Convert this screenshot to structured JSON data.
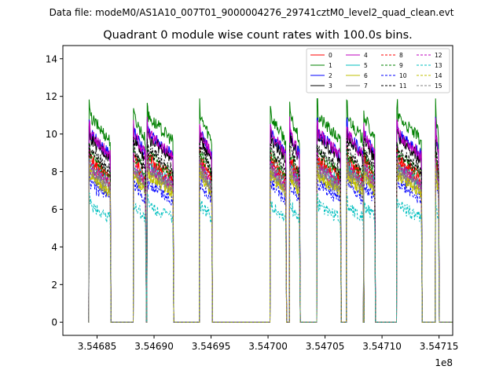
{
  "chart_data": {
    "type": "line",
    "suptitle": "Data file: modeM0/AS1A10_007T01_9000004276_29741cztM0_level2_quad_clean.evt",
    "title": "Quadrant 0 module wise count rates with 100.0s bins.",
    "xlabel": "",
    "ylabel": "",
    "x_offset_label": "1e8",
    "xlim": [
      3.54682,
      3.547162
    ],
    "ylim": [
      -0.7,
      14.7
    ],
    "x_ticks": [
      3.54685,
      3.5469,
      3.54695,
      3.547,
      3.54705,
      3.5471,
      3.54715
    ],
    "x_tick_labels": [
      "3.54685",
      "3.54690",
      "3.54695",
      "3.54700",
      "3.54705",
      "3.54710",
      "3.54715"
    ],
    "y_ticks": [
      0,
      2,
      4,
      6,
      8,
      10,
      12,
      14
    ],
    "y_tick_labels": [
      "0",
      "2",
      "4",
      "6",
      "8",
      "10",
      "12",
      "14"
    ],
    "grid": false,
    "legend_position": "top-right",
    "active_segments": [
      [
        3.546843,
        3.546862
      ],
      [
        3.546882,
        3.546893
      ],
      [
        3.546894,
        3.546917
      ],
      [
        3.54694,
        3.546951
      ],
      [
        3.547002,
        3.547016
      ],
      [
        3.547019,
        3.547028
      ],
      [
        3.547043,
        3.547064
      ],
      [
        3.547069,
        3.547084
      ],
      [
        3.547084,
        3.547094
      ],
      [
        3.547113,
        3.547135
      ],
      [
        3.547147,
        3.54715
      ]
    ],
    "gap_level": 0,
    "series": [
      {
        "name": "0",
        "color": "#ff0000",
        "dash": "solid",
        "level": 7.8
      },
      {
        "name": "1",
        "color": "#008000",
        "dash": "solid",
        "level": 9.8
      },
      {
        "name": "2",
        "color": "#0000ff",
        "dash": "solid",
        "level": 9.0
      },
      {
        "name": "3",
        "color": "#000000",
        "dash": "solid",
        "level": 8.8
      },
      {
        "name": "4",
        "color": "#bf00bf",
        "dash": "solid",
        "level": 9.0
      },
      {
        "name": "5",
        "color": "#00bfbf",
        "dash": "solid",
        "level": 7.5
      },
      {
        "name": "6",
        "color": "#bfbf00",
        "dash": "solid",
        "level": 7.0
      },
      {
        "name": "7",
        "color": "#808080",
        "dash": "solid",
        "level": 7.2
      },
      {
        "name": "8",
        "color": "#ff0000",
        "dash": "dashed",
        "level": 7.6
      },
      {
        "name": "9",
        "color": "#008000",
        "dash": "dashed",
        "level": 8.0
      },
      {
        "name": "10",
        "color": "#0000ff",
        "dash": "dashed",
        "level": 6.6
      },
      {
        "name": "11",
        "color": "#000000",
        "dash": "dashed",
        "level": 8.2
      },
      {
        "name": "12",
        "color": "#bf00bf",
        "dash": "dashed",
        "level": 7.4
      },
      {
        "name": "13",
        "color": "#00bfbf",
        "dash": "dashed",
        "level": 5.6
      },
      {
        "name": "14",
        "color": "#bfbf00",
        "dash": "dashed",
        "level": 7.0
      },
      {
        "name": "15",
        "color": "#808080",
        "dash": "dashed",
        "level": 7.3
      }
    ]
  }
}
